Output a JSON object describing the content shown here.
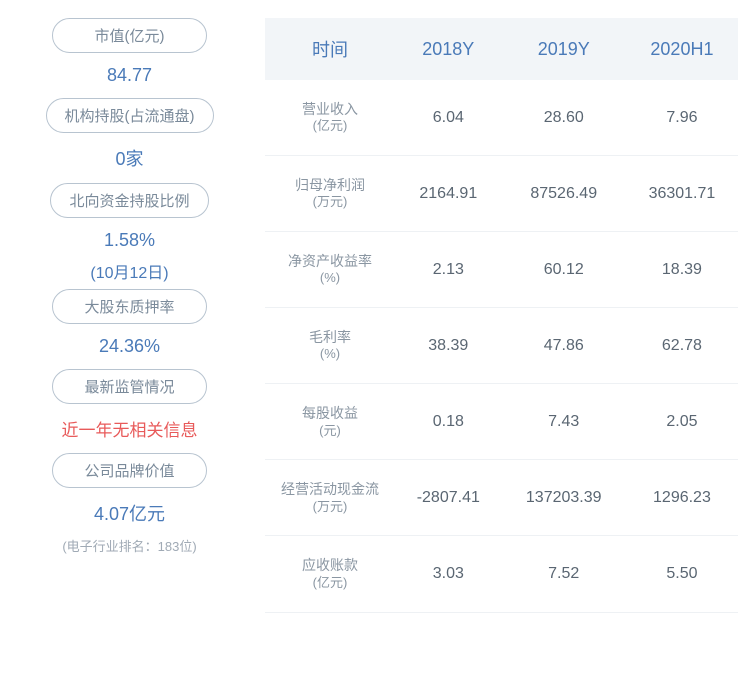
{
  "left_metrics": [
    {
      "label": "市值(亿元)",
      "value": "84.77",
      "value_color": "blue"
    },
    {
      "label": "机构持股(占流通盘)",
      "value": "0家",
      "value_color": "blue"
    },
    {
      "label": "北向资金持股比例",
      "value": "1.58%",
      "subtext": "(10月12日)",
      "value_color": "blue"
    },
    {
      "label": "大股东质押率",
      "value": "24.36%",
      "value_color": "blue"
    },
    {
      "label": "最新监管情况",
      "value": "近一年无相关信息",
      "value_color": "red"
    },
    {
      "label": "公司品牌价值",
      "value": "4.07亿元",
      "small": "(电子行业排名：183位)",
      "value_color": "blue"
    }
  ],
  "table": {
    "headers": [
      "时间",
      "2018Y",
      "2019Y",
      "2020H1"
    ],
    "rows": [
      {
        "label_main": "营业收入",
        "label_unit": "(亿元)",
        "cells": [
          "6.04",
          "28.60",
          "7.96"
        ]
      },
      {
        "label_main": "归母净利润",
        "label_unit": "(万元)",
        "cells": [
          "2164.91",
          "87526.49",
          "36301.71"
        ]
      },
      {
        "label_main": "净资产收益率",
        "label_unit": "(%)",
        "cells": [
          "2.13",
          "60.12",
          "18.39"
        ]
      },
      {
        "label_main": "毛利率",
        "label_unit": "(%)",
        "cells": [
          "38.39",
          "47.86",
          "62.78"
        ]
      },
      {
        "label_main": "每股收益",
        "label_unit": "(元)",
        "cells": [
          "0.18",
          "7.43",
          "2.05"
        ]
      },
      {
        "label_main": "经营活动现金流",
        "label_unit": "(万元)",
        "cells": [
          "-2807.41",
          "137203.39",
          "1296.23"
        ]
      },
      {
        "label_main": "应收账款",
        "label_unit": "(亿元)",
        "cells": [
          "3.03",
          "7.52",
          "5.50"
        ]
      }
    ]
  },
  "colors": {
    "header_bg": "#f2f5f8",
    "header_text": "#4a7ab8",
    "value_blue": "#4a7ab8",
    "value_red": "#e85a5a",
    "label_border": "#b8c4d0",
    "label_text": "#7a8a9a",
    "cell_text": "#5a6672",
    "row_label_text": "#8a96a2",
    "row_border": "#eef1f4"
  }
}
